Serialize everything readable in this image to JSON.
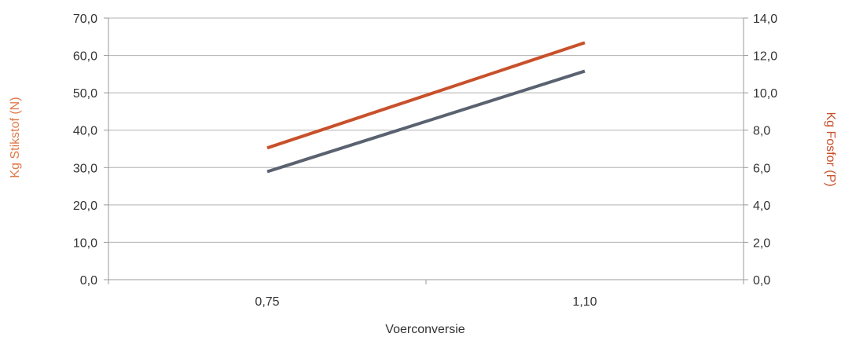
{
  "chart_data": {
    "type": "line",
    "categories": [
      "0,75",
      "1,10"
    ],
    "xlabel": "Voerconversie",
    "ylabel_left": "Kg Stikstof (N)",
    "ylabel_right": "Kg Fosfor (P)",
    "ylim_left": [
      0,
      70
    ],
    "ylim_right": [
      0,
      14
    ],
    "y_ticks_left": [
      "0,0",
      "10,0",
      "20,0",
      "30,0",
      "40,0",
      "50,0",
      "60,0",
      "70,0"
    ],
    "y_ticks_right": [
      "0,0",
      "2,0",
      "4,0",
      "6,0",
      "8,0",
      "10,0",
      "12,0",
      "14,0"
    ],
    "grid": true,
    "series": [
      {
        "axis": "left",
        "color": "#5a6270",
        "values": [
          28.9,
          55.8
        ]
      },
      {
        "axis": "right",
        "color": "#c8502a",
        "values": [
          7.05,
          12.68
        ]
      }
    ],
    "colors": {
      "left_label": "#e07a4a",
      "right_label": "#c8502a",
      "grid": "#b0b0b0",
      "axis": "#999999"
    }
  }
}
